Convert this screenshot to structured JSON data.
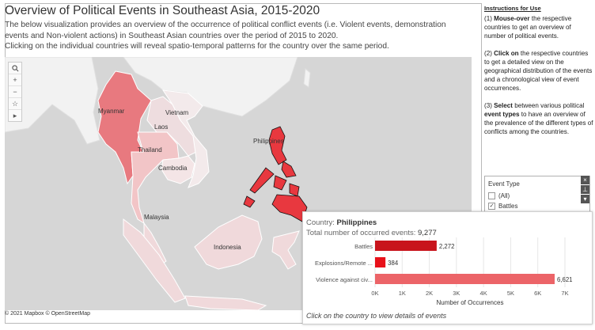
{
  "header": {
    "title": "Overview of Political Events in Southeast Asia, 2015-2020",
    "desc_line1": "The below visualization provides an overview of the occurrence of political conflict events (i.e. Violent events, demonstration",
    "desc_line2": "events and Non-violent actions) in Southeast Asian countries over the period of 2015 to 2020.",
    "desc_line3": "Clicking on the individual countries will reveal spatio-temporal patterns for the country  over the same period."
  },
  "map": {
    "attribution": "© 2021 Mapbox © OpenStreetMap",
    "labels": {
      "myanmar": "Myanmar",
      "laos": "Laos",
      "vietnam": "Vietnam",
      "thailand": "Thailand",
      "cambodia": "Cambodia",
      "philippines": "Philippines",
      "malaysia": "Malaysia",
      "indonesia": "Indonesia"
    },
    "toolbar": [
      "search-icon",
      "zoom-in-icon",
      "zoom-out-icon",
      "pin-icon",
      "expand-icon"
    ],
    "colors": {
      "water": "#d6d6d6",
      "land": "#f2f2f2",
      "myanmar": "#e8797f",
      "thailand": "#f2c5c7",
      "laos": "#eedddf",
      "vietnam": "#f3eaeb",
      "cambodia": "#f4e5e6",
      "philippines": "#e8383f",
      "malaysia": "#f0d9db",
      "indonesia": "#f0d9db"
    }
  },
  "instructions": {
    "heading": "Instructions for Use",
    "s1_num": "(1) ",
    "s1_bold": "Mouse-over",
    "s1_text": " the respective countries to get an overview of number of political events.",
    "s2_num": "(2) ",
    "s2_bold": "Click on",
    "s2_text": " the respective countries to get a detailed view on the geographical distribution of the events and a chronological view of event occurrences.",
    "s3_num": "(3) ",
    "s3_bold": "Select",
    "s3_mid": " between various political ",
    "s3_bold2": "event types",
    "s3_text": " to have an overview of the prevalence of the different types of conflicts among the countries."
  },
  "filter": {
    "heading": "Event Type",
    "options": [
      {
        "label": "(All)",
        "checked": false
      },
      {
        "label": "Battles",
        "checked": true
      }
    ]
  },
  "tooltip": {
    "country_label": "Country: ",
    "country_value": "Philippines",
    "total_label": "Total number of occurred events: ",
    "total_value": "9,277",
    "footer": "Click  on the country to view details of events"
  },
  "chart_data": {
    "type": "bar",
    "orientation": "horizontal",
    "categories": [
      "Battles",
      "Explosions/Remote ...",
      "Violence against civ..."
    ],
    "values": [
      2272,
      384,
      6621
    ],
    "value_labels": [
      "2,272",
      "384",
      "6,621"
    ],
    "colors": [
      "#c8141c",
      "#e8111a",
      "#ec6468"
    ],
    "xlabel": "Number of Occurrences",
    "xlim": [
      0,
      7000
    ],
    "xticks": [
      "0K",
      "1K",
      "2K",
      "3K",
      "4K",
      "5K",
      "6K",
      "7K"
    ],
    "grid": true
  }
}
